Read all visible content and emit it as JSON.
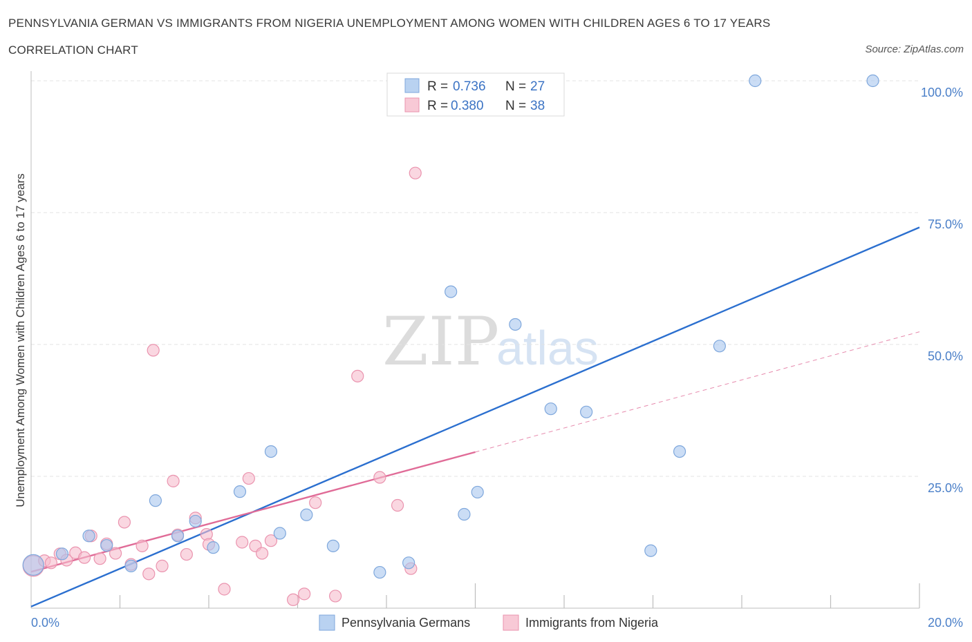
{
  "chart_data": {
    "type": "scatter",
    "title": "PENNSYLVANIA GERMAN VS IMMIGRANTS FROM NIGERIA UNEMPLOYMENT AMONG WOMEN WITH CHILDREN AGES 6 TO 17 YEARS",
    "subtitle": "CORRELATION CHART",
    "source": "Source: ZipAtlas.com",
    "watermark": [
      "ZIP",
      "atlas"
    ],
    "xlabel": "",
    "ylabel": "Unemployment Among Women with Children Ages 6 to 17 years",
    "xlim": [
      0,
      20
    ],
    "ylim": [
      0,
      100
    ],
    "x_tick_labels": [
      "0.0%",
      "20.0%"
    ],
    "y_ticks": [
      25,
      50,
      75,
      100
    ],
    "y_tick_labels": [
      "25.0%",
      "50.0%",
      "75.0%",
      "100.0%"
    ],
    "grid": true,
    "legend_position": "top-center",
    "series": [
      {
        "name": "Pennsylvania Germans",
        "color": "#a9c7ee",
        "edge": "#7ea7dc",
        "line_color": "#2b6fcf",
        "R": "0.736",
        "N": "27",
        "r_label": "R = ",
        "n_label": "N = ",
        "trend": {
          "x": [
            0,
            20
          ],
          "y": [
            0.3,
            72.2
          ],
          "dashed": false
        },
        "points": [
          {
            "x": 0.05,
            "y": 8.2
          },
          {
            "x": 0.7,
            "y": 10.3
          },
          {
            "x": 1.3,
            "y": 13.7
          },
          {
            "x": 1.7,
            "y": 11.9
          },
          {
            "x": 2.25,
            "y": 8.0
          },
          {
            "x": 2.8,
            "y": 20.4
          },
          {
            "x": 3.3,
            "y": 13.7
          },
          {
            "x": 3.7,
            "y": 16.5
          },
          {
            "x": 4.1,
            "y": 11.5
          },
          {
            "x": 4.7,
            "y": 22.1
          },
          {
            "x": 5.4,
            "y": 29.7
          },
          {
            "x": 5.6,
            "y": 14.2
          },
          {
            "x": 6.2,
            "y": 17.7
          },
          {
            "x": 6.8,
            "y": 11.8
          },
          {
            "x": 7.85,
            "y": 6.8
          },
          {
            "x": 8.5,
            "y": 8.6
          },
          {
            "x": 9.45,
            "y": 60.0
          },
          {
            "x": 9.75,
            "y": 17.8
          },
          {
            "x": 10.05,
            "y": 22.0
          },
          {
            "x": 10.9,
            "y": 53.8
          },
          {
            "x": 11.7,
            "y": 37.8
          },
          {
            "x": 12.5,
            "y": 37.2
          },
          {
            "x": 13.95,
            "y": 10.9
          },
          {
            "x": 14.6,
            "y": 29.7
          },
          {
            "x": 15.5,
            "y": 49.7
          },
          {
            "x": 16.3,
            "y": 100.0
          },
          {
            "x": 18.95,
            "y": 100.0
          }
        ]
      },
      {
        "name": "Immigrants from Nigeria",
        "color": "#f6bccd",
        "edge": "#ea93ae",
        "line_color": "#e06b97",
        "R": "0.380",
        "N": "38",
        "r_label": "R = ",
        "n_label": "N = ",
        "trend": {
          "x": [
            0,
            10.0
          ],
          "y": [
            6.9,
            29.6
          ],
          "dashed_extension": {
            "x": [
              10.0,
              20
            ],
            "y": [
              29.6,
              52.4
            ]
          }
        },
        "points": [
          {
            "x": 0.05,
            "y": 8.0
          },
          {
            "x": 0.3,
            "y": 9.0
          },
          {
            "x": 0.45,
            "y": 8.6
          },
          {
            "x": 0.65,
            "y": 10.3
          },
          {
            "x": 0.8,
            "y": 9.1
          },
          {
            "x": 1.0,
            "y": 10.5
          },
          {
            "x": 1.2,
            "y": 9.6
          },
          {
            "x": 1.35,
            "y": 13.7
          },
          {
            "x": 1.55,
            "y": 9.4
          },
          {
            "x": 1.7,
            "y": 12.2
          },
          {
            "x": 1.9,
            "y": 10.4
          },
          {
            "x": 2.1,
            "y": 16.3
          },
          {
            "x": 2.25,
            "y": 8.3
          },
          {
            "x": 2.5,
            "y": 11.8
          },
          {
            "x": 2.65,
            "y": 6.5
          },
          {
            "x": 2.75,
            "y": 48.9
          },
          {
            "x": 2.95,
            "y": 8.0
          },
          {
            "x": 3.2,
            "y": 24.1
          },
          {
            "x": 3.3,
            "y": 13.9
          },
          {
            "x": 3.5,
            "y": 10.2
          },
          {
            "x": 3.7,
            "y": 17.1
          },
          {
            "x": 3.95,
            "y": 14.0
          },
          {
            "x": 4.0,
            "y": 12.1
          },
          {
            "x": 4.35,
            "y": 3.6
          },
          {
            "x": 4.75,
            "y": 12.5
          },
          {
            "x": 4.9,
            "y": 24.6
          },
          {
            "x": 5.05,
            "y": 11.8
          },
          {
            "x": 5.2,
            "y": 10.4
          },
          {
            "x": 5.4,
            "y": 12.8
          },
          {
            "x": 5.9,
            "y": 1.6
          },
          {
            "x": 6.15,
            "y": 2.7
          },
          {
            "x": 6.4,
            "y": 20.0
          },
          {
            "x": 6.85,
            "y": 2.3
          },
          {
            "x": 7.35,
            "y": 44.0
          },
          {
            "x": 7.85,
            "y": 24.8
          },
          {
            "x": 8.25,
            "y": 19.5
          },
          {
            "x": 8.55,
            "y": 7.5
          },
          {
            "x": 8.65,
            "y": 82.5
          }
        ]
      }
    ]
  }
}
